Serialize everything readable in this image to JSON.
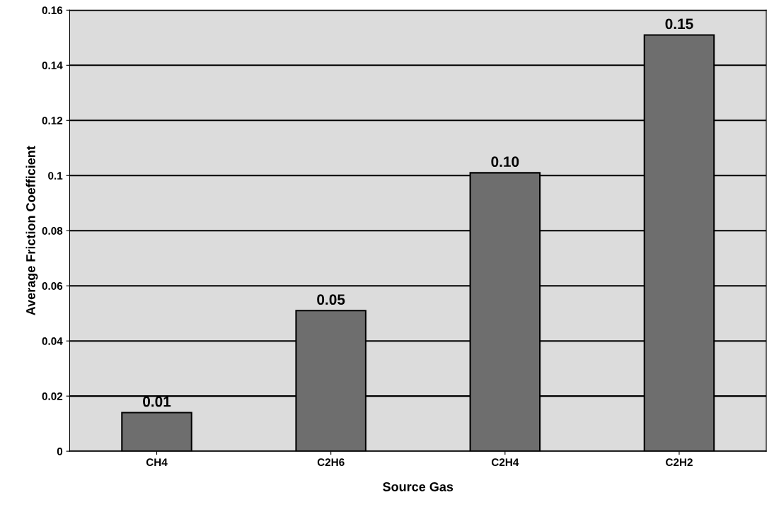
{
  "chart_data": {
    "type": "bar",
    "xlabel": "Source Gas",
    "ylabel": "Average Friction Coefficient",
    "categories": [
      "CH4",
      "C2H6",
      "C2H4",
      "C2H2"
    ],
    "values": [
      0.014,
      0.051,
      0.101,
      0.151
    ],
    "value_labels": [
      "0.01",
      "0.05",
      "0.10",
      "0.15"
    ],
    "color": "#6e6e6e",
    "ylim": [
      0,
      0.16
    ],
    "yticks": [
      {
        "value": 0,
        "label": "0"
      },
      0.02,
      0.04,
      0.06,
      0.08,
      0.1,
      0.12,
      0.14,
      0.16
    ],
    "grid": "y"
  }
}
